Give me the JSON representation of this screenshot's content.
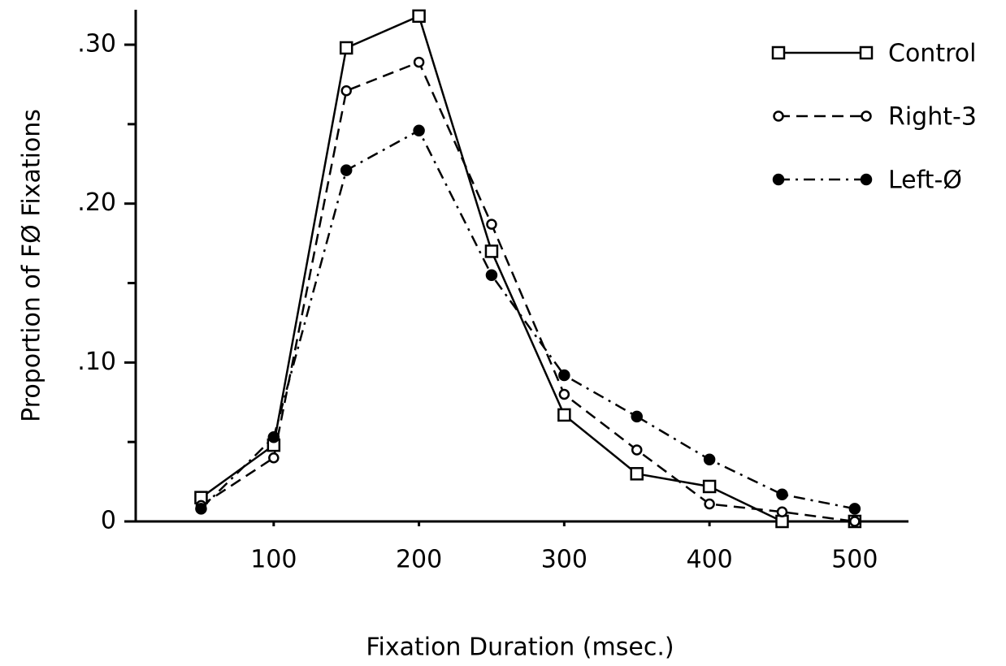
{
  "chart_data": {
    "type": "line",
    "xlabel": "Fixation Duration (msec.)",
    "ylabel": "Proportion of FØ Fixations",
    "x": [
      50,
      100,
      150,
      200,
      250,
      300,
      350,
      400,
      450,
      500
    ],
    "series": [
      {
        "name": "Control",
        "color": "#000000",
        "marker": "square",
        "line_style": "solid",
        "values": [
          0.015,
          0.048,
          0.298,
          0.318,
          0.17,
          0.067,
          0.03,
          0.022,
          0.0,
          0.0
        ]
      },
      {
        "name": "Right-3",
        "color": "#000000",
        "marker": "open-circle",
        "line_style": "dashed",
        "values": [
          0.01,
          0.04,
          0.271,
          0.289,
          0.187,
          0.08,
          0.045,
          0.011,
          0.006,
          0.0
        ]
      },
      {
        "name": "Left-Ø",
        "color": "#000000",
        "marker": "filled-circle",
        "line_style": "dashdot",
        "values": [
          0.008,
          0.053,
          0.221,
          0.246,
          0.155,
          0.092,
          0.066,
          0.039,
          0.017,
          0.008
        ]
      }
    ],
    "xlim": [
      5,
      537
    ],
    "xticks": [
      100,
      200,
      300,
      400,
      500
    ],
    "ylim": [
      0,
      0.322
    ],
    "yticks": [
      0,
      {
        "value": 0.1,
        "label": ".10"
      },
      {
        "value": 0.2,
        "label": ".20"
      },
      {
        "value": 0.3,
        "label": ".30"
      }
    ],
    "legend": "upper right",
    "grid": false
  }
}
